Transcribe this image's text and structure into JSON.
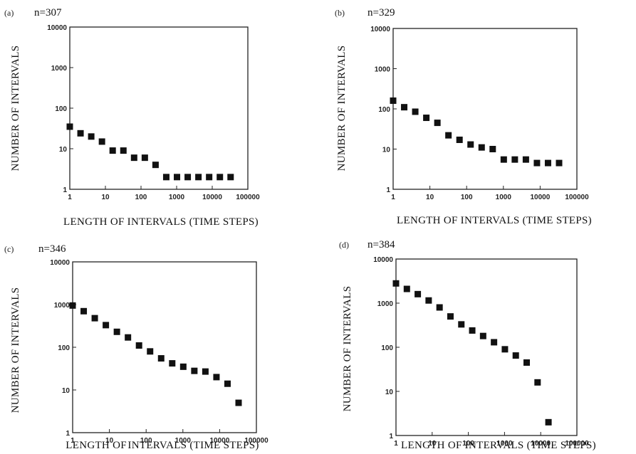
{
  "chart_data": [
    {
      "type": "scatter",
      "panel_label": "(a)",
      "title": "n=307",
      "xlabel": "LENGTH OF INTERVALS (TIME STEPS)",
      "ylabel": "NUMBER OF INTERVALS",
      "x_scale": "log",
      "y_scale": "log",
      "xlim": [
        1,
        100000
      ],
      "ylim": [
        1,
        10000
      ],
      "x_ticks": [
        "1",
        "10",
        "100",
        "1000",
        "10000",
        "100000"
      ],
      "y_ticks": [
        "1",
        "10",
        "100",
        "1000",
        "10000"
      ],
      "grid": false,
      "x": [
        1,
        2,
        4,
        8,
        16,
        32,
        64,
        128,
        256,
        512,
        1024,
        2048,
        4096,
        8192,
        16384,
        32768
      ],
      "y": [
        35,
        24,
        20,
        15,
        9,
        9,
        6,
        6,
        4,
        2,
        2,
        2,
        2,
        2,
        2,
        2
      ]
    },
    {
      "type": "scatter",
      "panel_label": "(b)",
      "title": "n=329",
      "xlabel": "LENGTH OF INTERVALS (TIME STEPS)",
      "ylabel": "NUMBER OF INTERVALS",
      "x_scale": "log",
      "y_scale": "log",
      "xlim": [
        1,
        100000
      ],
      "ylim": [
        1,
        10000
      ],
      "x_ticks": [
        "1",
        "10",
        "100",
        "1000",
        "10000",
        "100000"
      ],
      "y_ticks": [
        "1",
        "10",
        "100",
        "1000",
        "10000"
      ],
      "grid": false,
      "x": [
        1,
        2,
        4,
        8,
        16,
        32,
        64,
        128,
        256,
        512,
        1024,
        2048,
        4096,
        8192,
        16384,
        32768
      ],
      "y": [
        160,
        110,
        85,
        60,
        45,
        22,
        17,
        13,
        11,
        10,
        5.5,
        5.5,
        5.5,
        4.5,
        4.5,
        4.5
      ]
    },
    {
      "type": "scatter",
      "panel_label": "(c)",
      "title": "n=346",
      "xlabel": "LENGTH OF INTERVALS (TIME STEPS)",
      "ylabel": "NUMBER OF INTERVALS",
      "x_scale": "log",
      "y_scale": "log",
      "xlim": [
        1,
        100000
      ],
      "ylim": [
        1,
        10000
      ],
      "x_ticks": [
        "1",
        "10",
        "100",
        "1000",
        "10000",
        "100000"
      ],
      "y_ticks": [
        "1",
        "10",
        "100",
        "1000",
        "10000"
      ],
      "grid": false,
      "x": [
        1,
        2,
        4,
        8,
        16,
        32,
        64,
        128,
        256,
        512,
        1024,
        2048,
        4096,
        8192,
        16384,
        32768
      ],
      "y": [
        950,
        700,
        480,
        330,
        230,
        170,
        110,
        80,
        55,
        42,
        35,
        28,
        27,
        20,
        14,
        5
      ]
    },
    {
      "type": "scatter",
      "panel_label": "(d)",
      "title": "n=384",
      "xlabel": "LENGTH OF INTERVALS (TIME STEPS)",
      "ylabel": "NUMBER OF INTERVALS",
      "x_scale": "log",
      "y_scale": "log",
      "xlim": [
        1,
        100000
      ],
      "ylim": [
        1,
        10000
      ],
      "x_ticks": [
        "1",
        "10",
        "100",
        "1000",
        "10000",
        "100000"
      ],
      "y_ticks": [
        "1",
        "10",
        "100",
        "1000",
        "10000"
      ],
      "grid": false,
      "x": [
        1,
        2,
        4,
        8,
        16,
        32,
        64,
        128,
        256,
        512,
        1024,
        2048,
        4096,
        8192,
        16384
      ],
      "y": [
        2800,
        2100,
        1600,
        1150,
        800,
        500,
        330,
        240,
        180,
        130,
        90,
        65,
        45,
        16,
        2
      ]
    }
  ]
}
